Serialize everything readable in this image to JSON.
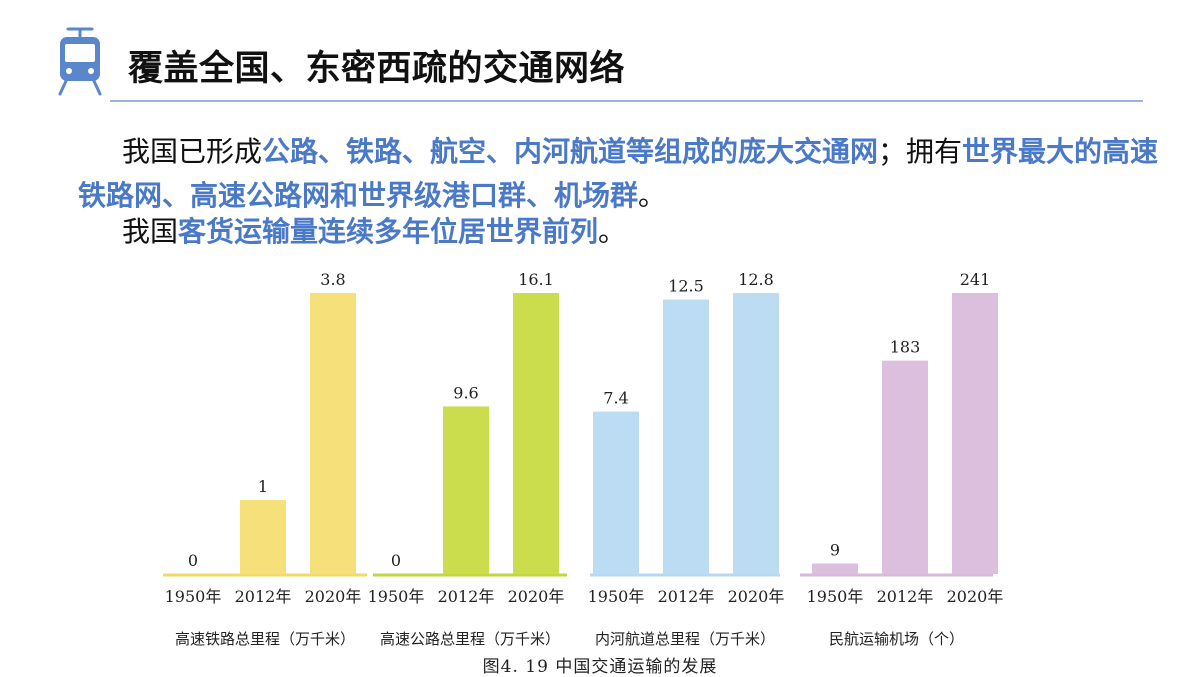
{
  "heading": "覆盖全国、东密西疏的交通网络",
  "paragraphs": [
    {
      "segments": [
        {
          "text": "我国已形成",
          "hl": false
        },
        {
          "text": "公路、铁路、航空、内河航道等组成的庞大交通网",
          "hl": true
        },
        {
          "text": "；拥有",
          "hl": false
        },
        {
          "text": "世界最大的高速铁路网、高速公路网和世界级港口群、机场群",
          "hl": true
        },
        {
          "text": "。",
          "hl": false
        }
      ]
    },
    {
      "segments": [
        {
          "text": "我国",
          "hl": false
        },
        {
          "text": "客货运输量连续多年位居世界前列",
          "hl": true
        },
        {
          "text": "。",
          "hl": false
        }
      ]
    }
  ],
  "colors": {
    "highlight": "#4a79c8",
    "rule": "#9db3dc",
    "icon": "#5a86cc"
  },
  "icon": "train-icon",
  "caption": "图4. 19  中国交通运输的发展",
  "chart_data": [
    {
      "type": "bar",
      "xlabel": "高速铁路总里程（万千米）",
      "categories": [
        "1950年",
        "2012年",
        "2020年"
      ],
      "values": [
        0,
        1,
        3.8
      ],
      "labels": [
        "0",
        "1",
        "3.8"
      ],
      "color": "#f5e07a",
      "baseline_color": "#f1d96a"
    },
    {
      "type": "bar",
      "xlabel": "高速公路总里程（万千米）",
      "categories": [
        "1950年",
        "2012年",
        "2020年"
      ],
      "values": [
        0,
        9.6,
        16.1
      ],
      "labels": [
        "0",
        "9.6",
        "16.1"
      ],
      "color": "#cbdc4c",
      "baseline_color": "#c3d63e"
    },
    {
      "type": "bar",
      "xlabel": "内河航道总里程（万千米）",
      "categories": [
        "1950年",
        "2012年",
        "2020年"
      ],
      "values": [
        7.4,
        12.5,
        12.8
      ],
      "labels": [
        "7.4",
        "12.5",
        "12.8"
      ],
      "color": "#bcdcf4",
      "baseline_color": "#b6d8f2"
    },
    {
      "type": "bar",
      "xlabel": "民航运输机场（个）",
      "categories": [
        "1950年",
        "2012年",
        "2020年"
      ],
      "values": [
        9,
        183,
        241
      ],
      "labels": [
        "9",
        "183",
        "241"
      ],
      "color": "#dcbfdc",
      "baseline_color": "#d8b8d8"
    }
  ]
}
